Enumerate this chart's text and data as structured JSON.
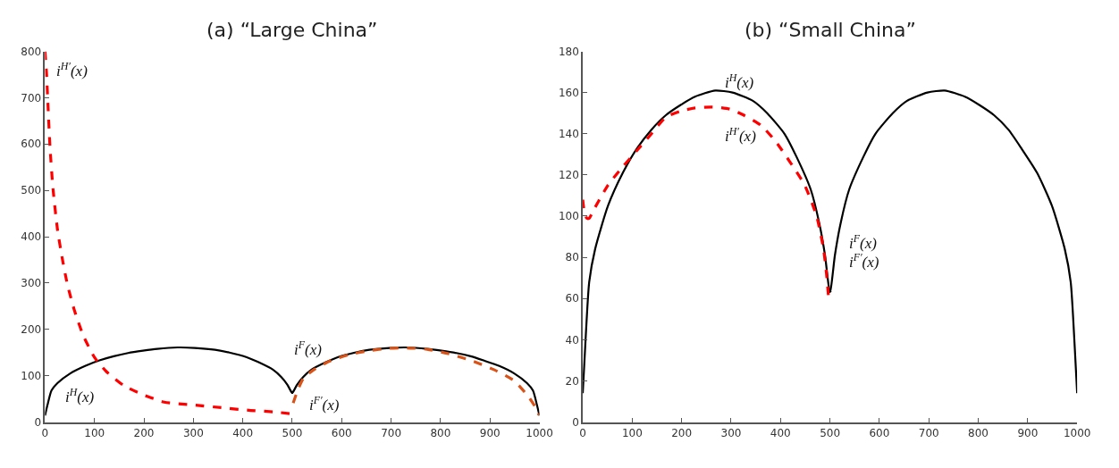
{
  "chart_data": [
    {
      "type": "line",
      "title": "(a) “Large China”",
      "xlim": [
        0,
        1000
      ],
      "ylim": [
        0,
        800
      ],
      "xticks": [
        0,
        100,
        200,
        300,
        400,
        500,
        600,
        700,
        800,
        900,
        1000
      ],
      "yticks": [
        0,
        100,
        200,
        300,
        400,
        500,
        600,
        700,
        800
      ],
      "grid": false,
      "series": [
        {
          "color": "#000000",
          "line_style": "solid",
          "x": [
            0,
            5,
            13,
            25,
            51,
            81,
            110,
            139,
            168,
            198,
            227,
            268,
            303,
            344,
            373,
            408,
            432,
            461,
            478,
            490,
            499,
            502
          ],
          "values": [
            14,
            37,
            68,
            84,
            105,
            121,
            133,
            142,
            149,
            154,
            158,
            161,
            160,
            156,
            150,
            140,
            129,
            113,
            97,
            81,
            64,
            63
          ]
        },
        {
          "color": "#000000",
          "line_style": "solid",
          "x": [
            498,
            501,
            510,
            522,
            539,
            568,
            592,
            627,
            656,
            697,
            732,
            773,
            802,
            832,
            861,
            887,
            919,
            949,
            975,
            987,
            995,
            1000
          ],
          "values": [
            63,
            64,
            81,
            97,
            113,
            129,
            140,
            150,
            156,
            160,
            161,
            158,
            154,
            149,
            142,
            133,
            121,
            105,
            84,
            68,
            37,
            14
          ]
        },
        {
          "color": "#ff0000",
          "line_style": "dashed",
          "x": [
            0,
            3,
            6,
            10,
            16,
            25,
            34,
            45,
            60,
            78,
            101,
            124,
            159,
            194,
            241,
            299,
            357,
            416,
            462,
            497
          ],
          "values": [
            800,
            753,
            683,
            594,
            505,
            417,
            358,
            298,
            239,
            185,
            138,
            109,
            79,
            61,
            43,
            37,
            31,
            25,
            22,
            18
          ]
        },
        {
          "color": "#d95319",
          "line_style": "dashed",
          "x": [
            502,
            512,
            523,
            544,
            579,
            614,
            655,
            696,
            732,
            773,
            814,
            861,
            908,
            949,
            979,
            993,
            999
          ],
          "values": [
            41,
            71,
            95,
            113,
            133,
            145,
            154,
            159,
            160,
            157,
            148,
            133,
            113,
            89,
            53,
            30,
            15
          ]
        }
      ],
      "annotations": [
        "i$^{H′}$(x)",
        "i$^{H}$(x)",
        "i$^{F}$(x)",
        "i$^{F′}$(x)"
      ]
    },
    {
      "type": "line",
      "title": "(b) “Small China”",
      "xlim": [
        0,
        1000
      ],
      "ylim": [
        0,
        180
      ],
      "xticks": [
        0,
        100,
        200,
        300,
        400,
        500,
        600,
        700,
        800,
        900,
        1000
      ],
      "yticks": [
        0,
        20,
        40,
        60,
        80,
        100,
        120,
        140,
        160,
        180
      ],
      "grid": false,
      "series": [
        {
          "color": "#000000",
          "line_style": "solid",
          "x": [
            0,
            5,
            13,
            25,
            51,
            81,
            110,
            139,
            168,
            198,
            227,
            268,
            303,
            344,
            373,
            408,
            432,
            461,
            478,
            490,
            499,
            502
          ],
          "values": [
            14,
            37,
            68,
            84,
            105,
            121,
            133,
            142,
            149,
            154,
            158,
            161,
            160,
            156,
            150,
            140,
            129,
            113,
            97,
            81,
            64,
            63
          ]
        },
        {
          "color": "#000000",
          "line_style": "solid",
          "x": [
            498,
            501,
            510,
            522,
            539,
            568,
            592,
            627,
            656,
            697,
            732,
            773,
            802,
            832,
            861,
            887,
            919,
            949,
            975,
            987,
            995,
            1000
          ],
          "values": [
            63,
            64,
            81,
            97,
            113,
            129,
            140,
            150,
            156,
            160,
            161,
            158,
            154,
            149,
            142,
            133,
            121,
            105,
            84,
            68,
            37,
            14
          ]
        },
        {
          "color": "#ff0000",
          "line_style": "dashed",
          "x": [
            0,
            2,
            8,
            13,
            22,
            51,
            81,
            110,
            139,
            168,
            198,
            227,
            262,
            297,
            326,
            361,
            391,
            420,
            449,
            473,
            487,
            493,
            497
          ],
          "values": [
            108,
            104,
            99,
            99,
            103,
            115,
            124,
            132,
            140,
            148,
            151,
            152.5,
            153,
            152,
            149,
            144,
            136,
            126,
            115,
            100,
            84,
            72,
            61
          ]
        }
      ],
      "annotations": [
        "i$^{H}$(x)",
        "i$^{H′}$(x)",
        "i$^{F}$(x)",
        "i$^{F′}$(x)"
      ]
    }
  ]
}
